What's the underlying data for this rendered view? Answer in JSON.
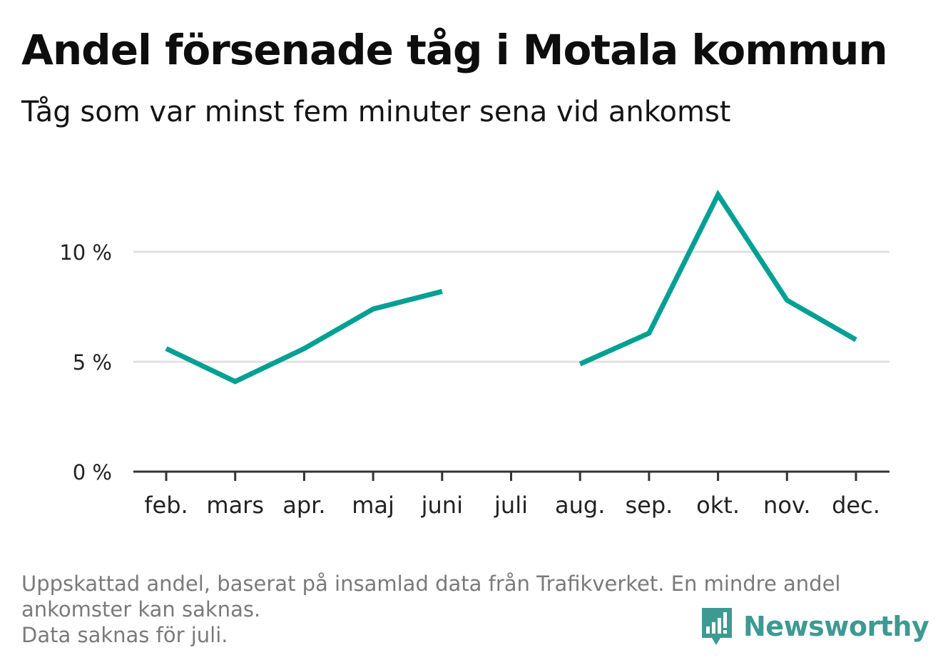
{
  "title": "Andel försenade tåg i Motala kommun",
  "subtitle": "Tåg som var minst fem minuter sena vid ankomst",
  "footnote": {
    "line1": "Uppskattad andel, baserat på insamlad data från Trafikverket. En mindre andel",
    "line2": "ankomster kan saknas.",
    "line3": "Data saknas för juli."
  },
  "brand": {
    "name": "Newsworthy",
    "icon": "newsworthy-logo-icon",
    "color": "#3d9a93"
  },
  "colors": {
    "line": "#00a094",
    "grid": "#e0e0e0",
    "axis": "#333333",
    "tick_label": "#222222"
  },
  "chart_data": {
    "type": "line",
    "title": "Andel försenade tåg i Motala kommun",
    "subtitle": "Tåg som var minst fem minuter sena vid ankomst",
    "xlabel": "",
    "ylabel": "",
    "categories": [
      "feb.",
      "mars",
      "apr.",
      "maj",
      "juni",
      "juli",
      "aug.",
      "sep.",
      "okt.",
      "nov.",
      "dec."
    ],
    "values": [
      5.6,
      4.1,
      5.6,
      7.4,
      8.2,
      null,
      4.9,
      6.3,
      12.6,
      7.8,
      6.0
    ],
    "y_ticks": [
      0,
      5,
      10
    ],
    "y_tick_labels": [
      "0 %",
      "5 %",
      "10 %"
    ],
    "ylim": [
      0,
      13.5
    ],
    "grid": true,
    "legend": "none",
    "missing": [
      "juli"
    ]
  }
}
